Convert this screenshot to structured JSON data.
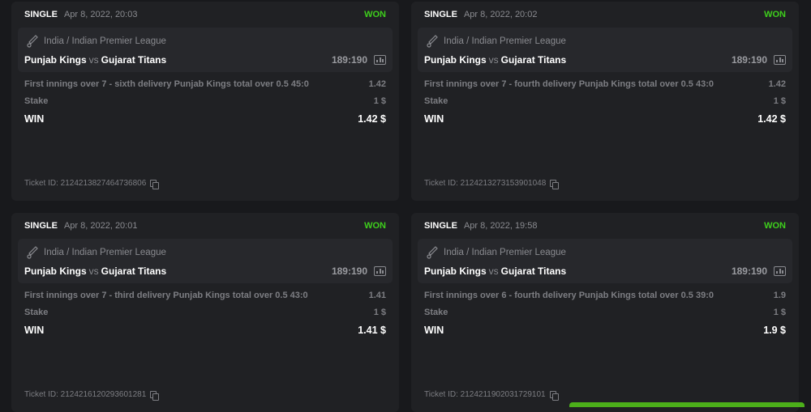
{
  "colors": {
    "won": "#3ecf1c"
  },
  "bets": [
    {
      "type": "SINGLE",
      "date": "Apr 8, 2022, 20:03",
      "status": "WON",
      "sport_icon": "cricket-icon",
      "league": "India / Indian Premier League",
      "home": "Punjab Kings",
      "vs": "vs",
      "away": "Gujarat Titans",
      "score": "189:190",
      "market": "First innings over 7 - sixth delivery Punjab Kings total over 0.5  45:0",
      "odds": "1.42",
      "stake_label": "Stake",
      "stake": "1 $",
      "win_label": "WIN",
      "win": "1.42 $",
      "ticket": "Ticket ID: 2124213827464736806"
    },
    {
      "type": "SINGLE",
      "date": "Apr 8, 2022, 20:02",
      "status": "WON",
      "sport_icon": "cricket-icon",
      "league": "India / Indian Premier League",
      "home": "Punjab Kings",
      "vs": "vs",
      "away": "Gujarat Titans",
      "score": "189:190",
      "market": "First innings over 7 - fourth delivery Punjab Kings total over 0.5  43:0",
      "odds": "1.42",
      "stake_label": "Stake",
      "stake": "1 $",
      "win_label": "WIN",
      "win": "1.42 $",
      "ticket": "Ticket ID: 2124213273153901048"
    },
    {
      "type": "SINGLE",
      "date": "Apr 8, 2022, 20:01",
      "status": "WON",
      "sport_icon": "cricket-icon",
      "league": "India / Indian Premier League",
      "home": "Punjab Kings",
      "vs": "vs",
      "away": "Gujarat Titans",
      "score": "189:190",
      "market": "First innings over 7 - third delivery Punjab Kings total over 0.5  43:0",
      "odds": "1.41",
      "stake_label": "Stake",
      "stake": "1 $",
      "win_label": "WIN",
      "win": "1.41 $",
      "ticket": "Ticket ID: 2124216120293601281"
    },
    {
      "type": "SINGLE",
      "date": "Apr 8, 2022, 19:58",
      "status": "WON",
      "sport_icon": "cricket-icon",
      "league": "India / Indian Premier League",
      "home": "Punjab Kings",
      "vs": "vs",
      "away": "Gujarat Titans",
      "score": "189:190",
      "market": "First innings over 6 - fourth delivery Punjab Kings total over 0.5  39:0",
      "odds": "1.9",
      "stake_label": "Stake",
      "stake": "1 $",
      "win_label": "WIN",
      "win": "1.9 $",
      "ticket": "Ticket ID: 2124211902031729101"
    }
  ]
}
